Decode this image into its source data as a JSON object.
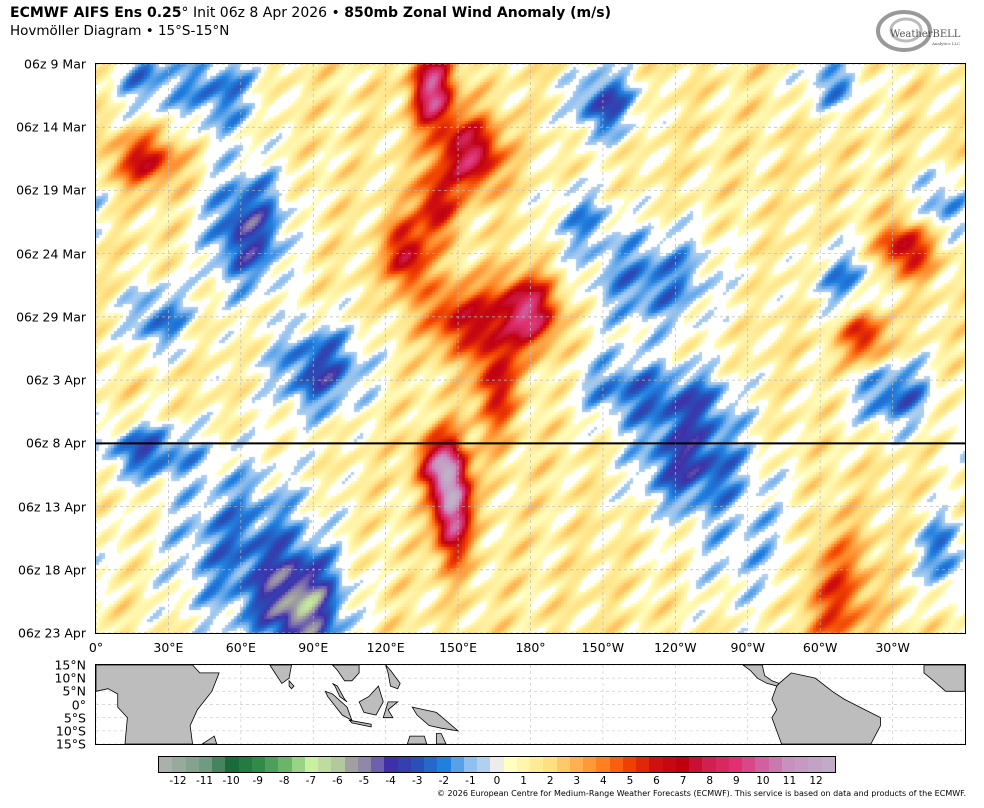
{
  "header": {
    "model": "ECMWF AIFS Ens 0.25",
    "degree": "°",
    "init": " Init 06z 8 Apr 2026 • ",
    "field": "850mb Zonal Wind Anomaly (m/s)",
    "subtitle": "Hovmöller Diagram • 15°S-15°N"
  },
  "logo": {
    "text": "WeatherBELL",
    "sub": "Analytics LLC"
  },
  "copyright": "© 2026 European Centre for Medium-Range Weather Forecasts (ECMWF). This service is based on data and products of the ECMWF.",
  "chart_data": {
    "type": "heatmap",
    "title": "850mb Zonal Wind Anomaly (m/s)",
    "units": "m/s",
    "x_range": [
      0,
      360
    ],
    "y_range": [
      "2026-03-09T06",
      "2026-04-23T06"
    ],
    "x_ticks": [
      {
        "lon": 0,
        "label": "0°"
      },
      {
        "lon": 30,
        "label": "30°E"
      },
      {
        "lon": 60,
        "label": "60°E"
      },
      {
        "lon": 90,
        "label": "90°E"
      },
      {
        "lon": 120,
        "label": "120°E"
      },
      {
        "lon": 150,
        "label": "150°E"
      },
      {
        "lon": 180,
        "label": "180°"
      },
      {
        "lon": 210,
        "label": "150°W"
      },
      {
        "lon": 240,
        "label": "120°W"
      },
      {
        "lon": 270,
        "label": "90°W"
      },
      {
        "lon": 300,
        "label": "60°W"
      },
      {
        "lon": 330,
        "label": "30°W"
      }
    ],
    "y_ticks": [
      {
        "day": 0,
        "label": "06z 9 Mar"
      },
      {
        "day": 5,
        "label": "06z 14 Mar"
      },
      {
        "day": 10,
        "label": "06z 19 Mar"
      },
      {
        "day": 15,
        "label": "06z 24 Mar"
      },
      {
        "day": 20,
        "label": "06z 29 Mar"
      },
      {
        "day": 25,
        "label": "06z 3 Apr"
      },
      {
        "day": 30,
        "label": "06z 8 Apr"
      },
      {
        "day": 35,
        "label": "06z 13 Apr"
      },
      {
        "day": 40,
        "label": "06z 18 Apr"
      },
      {
        "day": 45,
        "label": "06z 23 Apr"
      }
    ],
    "init_marker_day": 30,
    "grid": true,
    "background_anomaly": 1.3,
    "features": [
      {
        "lon": 147,
        "day": 34.5,
        "value": 11,
        "lon_spread": 5,
        "day_spread": 3
      },
      {
        "lon": 140,
        "day": 31.5,
        "value": 6,
        "lon_spread": 6,
        "day_spread": 1.5
      },
      {
        "lon": 139,
        "day": 2,
        "value": 8.5,
        "lon_spread": 6,
        "day_spread": 2.2
      },
      {
        "lon": 155,
        "day": 7,
        "value": 7,
        "lon_spread": 9,
        "day_spread": 2
      },
      {
        "lon": 140,
        "day": 11,
        "value": 5,
        "lon_spread": 6,
        "day_spread": 2
      },
      {
        "lon": 128,
        "day": 15,
        "value": 6,
        "lon_spread": 6,
        "day_spread": 2
      },
      {
        "lon": 178,
        "day": 19.5,
        "value": 8,
        "lon_spread": 9,
        "day_spread": 2
      },
      {
        "lon": 150,
        "day": 20,
        "value": 5,
        "lon_spread": 10,
        "day_spread": 2
      },
      {
        "lon": 165,
        "day": 25,
        "value": 5,
        "lon_spread": 6,
        "day_spread": 3
      },
      {
        "lon": 20,
        "day": 7.5,
        "value": 5,
        "lon_spread": 10,
        "day_spread": 1.5
      },
      {
        "lon": 335,
        "day": 14.5,
        "value": 6,
        "lon_spread": 8,
        "day_spread": 1.5
      },
      {
        "lon": 318,
        "day": 21.5,
        "value": 5,
        "lon_spread": 7,
        "day_spread": 1.5
      },
      {
        "lon": 306,
        "day": 42,
        "value": 4,
        "lon_spread": 10,
        "day_spread": 4
      },
      {
        "lon": 62,
        "day": 13,
        "value": -5,
        "lon_spread": 12,
        "day_spread": 3.5
      },
      {
        "lon": 50,
        "day": 2,
        "value": -3.5,
        "lon_spread": 12,
        "day_spread": 2.5
      },
      {
        "lon": 20,
        "day": 1,
        "value": -3,
        "lon_spread": 10,
        "day_spread": 2
      },
      {
        "lon": 92,
        "day": 24,
        "value": -4.5,
        "lon_spread": 14,
        "day_spread": 2.5
      },
      {
        "lon": 25,
        "day": 20,
        "value": -3.5,
        "lon_spread": 10,
        "day_spread": 2
      },
      {
        "lon": 20,
        "day": 30.5,
        "value": -4,
        "lon_spread": 14,
        "day_spread": 1.5
      },
      {
        "lon": 85,
        "day": 43,
        "value": -6,
        "lon_spread": 12,
        "day_spread": 3
      },
      {
        "lon": 60,
        "day": 38,
        "value": -3.5,
        "lon_spread": 22,
        "day_spread": 5
      },
      {
        "lon": 210,
        "day": 3,
        "value": -4.5,
        "lon_spread": 10,
        "day_spread": 2
      },
      {
        "lon": 230,
        "day": 17,
        "value": -3.5,
        "lon_spread": 20,
        "day_spread": 3
      },
      {
        "lon": 245,
        "day": 31.5,
        "value": -4.5,
        "lon_spread": 16,
        "day_spread": 2.5
      },
      {
        "lon": 245,
        "day": 26.5,
        "value": -3.5,
        "lon_spread": 15,
        "day_spread": 2
      },
      {
        "lon": 215,
        "day": 25.5,
        "value": -3,
        "lon_spread": 12,
        "day_spread": 2
      },
      {
        "lon": 330,
        "day": 26,
        "value": -4,
        "lon_spread": 12,
        "day_spread": 2
      },
      {
        "lon": 310,
        "day": 17,
        "value": -3,
        "lon_spread": 10,
        "day_spread": 2
      },
      {
        "lon": 305,
        "day": 1.5,
        "value": -3,
        "lon_spread": 10,
        "day_spread": 1.5
      },
      {
        "lon": 350,
        "day": 38.5,
        "value": -3.5,
        "lon_spread": 7,
        "day_spread": 2.5
      },
      {
        "lon": 350,
        "day": 11,
        "value": -3,
        "lon_spread": 8,
        "day_spread": 2
      },
      {
        "lon": 200,
        "day": 12,
        "value": -2.5,
        "lon_spread": 10,
        "day_spread": 2
      },
      {
        "lon": 270,
        "day": 38,
        "value": -2,
        "lon_spread": 20,
        "day_spread": 4
      }
    ],
    "colorbar": {
      "ticks": [
        -12,
        -11,
        -10,
        -9,
        -8,
        -7,
        -6,
        -5,
        -4,
        -3,
        -2,
        -1,
        0,
        1,
        2,
        3,
        4,
        5,
        6,
        7,
        8,
        9,
        10,
        11,
        12
      ],
      "stops": [
        {
          "v": -12.75,
          "c": "#b4b4b4"
        },
        {
          "v": -11,
          "c": "#6f9c80"
        },
        {
          "v": -10,
          "c": "#1a6b3a"
        },
        {
          "v": -9,
          "c": "#2e8b48"
        },
        {
          "v": -8,
          "c": "#6ab56a"
        },
        {
          "v": -7,
          "c": "#c8f0a0"
        },
        {
          "v": -6,
          "c": "#b4c8a0"
        },
        {
          "v": -5.5,
          "c": "#a0a0a0"
        },
        {
          "v": -5,
          "c": "#9088a8"
        },
        {
          "v": -4.3,
          "c": "#6050b0"
        },
        {
          "v": -4,
          "c": "#4030a8"
        },
        {
          "v": -3,
          "c": "#2850b8"
        },
        {
          "v": -2,
          "c": "#2080e0"
        },
        {
          "v": -1,
          "c": "#90c0f0"
        },
        {
          "v": -0.5,
          "c": "#b0d0f0"
        },
        {
          "v": 0,
          "c": "#ececec"
        },
        {
          "v": 0.5,
          "c": "#ffffc0"
        },
        {
          "v": 2,
          "c": "#ffe080"
        },
        {
          "v": 3,
          "c": "#ffb050"
        },
        {
          "v": 4,
          "c": "#ff8020"
        },
        {
          "v": 5,
          "c": "#f04000"
        },
        {
          "v": 6,
          "c": "#d01010"
        },
        {
          "v": 7,
          "c": "#c00010"
        },
        {
          "v": 8,
          "c": "#d02050"
        },
        {
          "v": 9,
          "c": "#e03070"
        },
        {
          "v": 10,
          "c": "#d060a0"
        },
        {
          "v": 11,
          "c": "#c890c0"
        },
        {
          "v": 12.75,
          "c": "#c0b0c8"
        }
      ]
    }
  },
  "map": {
    "lat_ticks": [
      {
        "lat": 15,
        "label": "15°N"
      },
      {
        "lat": 10,
        "label": "10°N"
      },
      {
        "lat": 5,
        "label": "5°N"
      },
      {
        "lat": 0,
        "label": "0°"
      },
      {
        "lat": -5,
        "label": "5°S"
      },
      {
        "lat": -10,
        "label": "10°S"
      },
      {
        "lat": -15,
        "label": "15°S"
      }
    ],
    "land_color": "#bdbdbd"
  }
}
